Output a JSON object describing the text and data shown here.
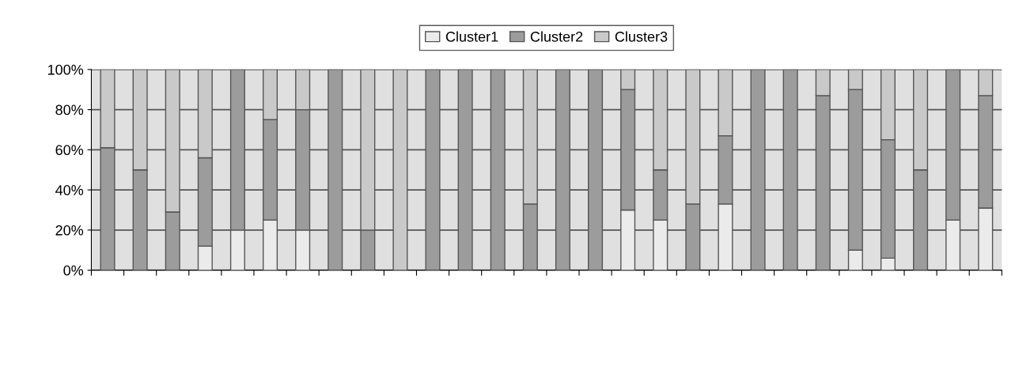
{
  "chart_data": {
    "type": "bar",
    "stacked": true,
    "categories": [
      null,
      null,
      null,
      null,
      null,
      null,
      null,
      null,
      null,
      null,
      null,
      null,
      null,
      null,
      null,
      null,
      null,
      null,
      null,
      null,
      null,
      null,
      null,
      null,
      null,
      null,
      null,
      null
    ],
    "series": [
      {
        "name": "Cluster1",
        "color": "#ebebeb",
        "values": [
          0,
          0,
          0,
          12,
          20,
          25,
          20,
          0,
          0,
          0,
          0,
          0,
          0,
          0,
          0,
          0,
          30,
          25,
          0,
          33,
          0,
          0,
          0,
          10,
          6,
          0,
          25,
          31
        ]
      },
      {
        "name": "Cluster2",
        "color": "#9c9c9c",
        "values": [
          61,
          50,
          29,
          44,
          80,
          50,
          60,
          100,
          20,
          0,
          100,
          100,
          100,
          33,
          100,
          100,
          60,
          25,
          33,
          34,
          100,
          100,
          87,
          80,
          59,
          50,
          75,
          56
        ]
      },
      {
        "name": "Cluster3",
        "color": "#c9c9c9",
        "values": [
          39,
          50,
          71,
          44,
          0,
          25,
          20,
          0,
          80,
          100,
          0,
          0,
          0,
          67,
          0,
          0,
          10,
          50,
          67,
          33,
          0,
          0,
          13,
          10,
          35,
          50,
          0,
          13
        ]
      }
    ],
    "ylim": [
      0,
      100
    ],
    "yticks": [
      {
        "value": 0,
        "label": "0%"
      },
      {
        "value": 20,
        "label": "20%"
      },
      {
        "value": 40,
        "label": "40%"
      },
      {
        "value": 60,
        "label": "60%"
      },
      {
        "value": 80,
        "label": "80%"
      },
      {
        "value": 100,
        "label": "100%"
      }
    ],
    "grid": "y",
    "legend": "top"
  }
}
